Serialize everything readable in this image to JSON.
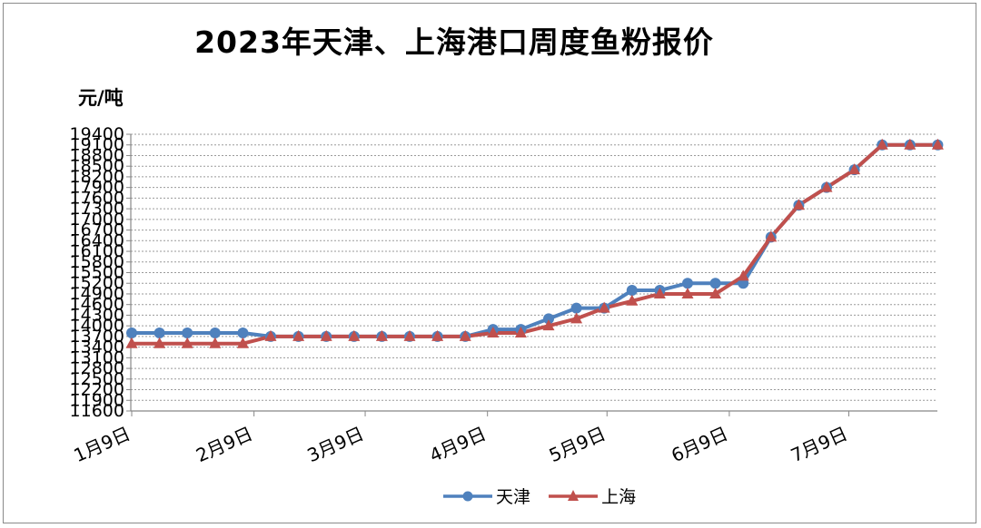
{
  "chart_data": {
    "type": "line",
    "title": "2023年天津、上海港口周度鱼粉报价",
    "ylabel": "元/吨",
    "xlabel": "",
    "ylim": [
      11600,
      19400
    ],
    "yticks": [
      11600,
      11900,
      12200,
      12500,
      12800,
      13100,
      13400,
      13700,
      14000,
      14300,
      14600,
      14900,
      15200,
      15500,
      15800,
      16100,
      16400,
      16700,
      17000,
      17300,
      17600,
      17900,
      18200,
      18500,
      18800,
      19100,
      19400
    ],
    "ytick_labels": [
      "11600",
      "11900",
      "12200",
      "12500",
      "12800",
      "13100",
      "13400",
      "13700",
      "14000",
      "14300",
      "14600",
      "14900",
      "15200",
      "15500",
      "15800",
      "16100",
      "16400",
      "16700",
      "17000",
      "17300",
      "17600",
      "17900",
      "18200",
      "18500",
      "18800",
      "19100",
      "19400"
    ],
    "x_labels": [
      {
        "label": "1月9日",
        "index": 0
      },
      {
        "label": "2月9日",
        "index": 4.4
      },
      {
        "label": "3月9日",
        "index": 8.4
      },
      {
        "label": "4月9日",
        "index": 12.8
      },
      {
        "label": "5月9日",
        "index": 17.1
      },
      {
        "label": "6月9日",
        "index": 21.5
      },
      {
        "label": "7月9日",
        "index": 25.8
      }
    ],
    "grid": true,
    "legend_position": "bottom",
    "series": [
      {
        "name": "天津",
        "color": "#4f81bd",
        "marker": "circle",
        "x": [
          0,
          1,
          2,
          3,
          4,
          5,
          6,
          7,
          8,
          9,
          10,
          11,
          12,
          13,
          14,
          15,
          16,
          17,
          18,
          19,
          20,
          21,
          22,
          23,
          24,
          25,
          26,
          27,
          28,
          29
        ],
        "values": [
          13800,
          13800,
          13800,
          13800,
          13800,
          13700,
          13700,
          13700,
          13700,
          13700,
          13700,
          13700,
          13700,
          13900,
          13900,
          14200,
          14500,
          14500,
          15000,
          15000,
          15200,
          15200,
          15200,
          16500,
          17400,
          17900,
          18400,
          19100,
          19100,
          19100
        ]
      },
      {
        "name": "上海",
        "color": "#c0504d",
        "marker": "triangle",
        "x": [
          0,
          1,
          2,
          3,
          4,
          5,
          6,
          7,
          8,
          9,
          10,
          11,
          12,
          13,
          14,
          15,
          16,
          17,
          18,
          19,
          20,
          21,
          22,
          23,
          24,
          25,
          26,
          27,
          28,
          29
        ],
        "values": [
          13500,
          13500,
          13500,
          13500,
          13500,
          13700,
          13700,
          13700,
          13700,
          13700,
          13700,
          13700,
          13700,
          13800,
          13800,
          14000,
          14200,
          14500,
          14700,
          14900,
          14900,
          14900,
          15400,
          16500,
          17400,
          17900,
          18400,
          19100,
          19100,
          19100
        ]
      }
    ]
  }
}
